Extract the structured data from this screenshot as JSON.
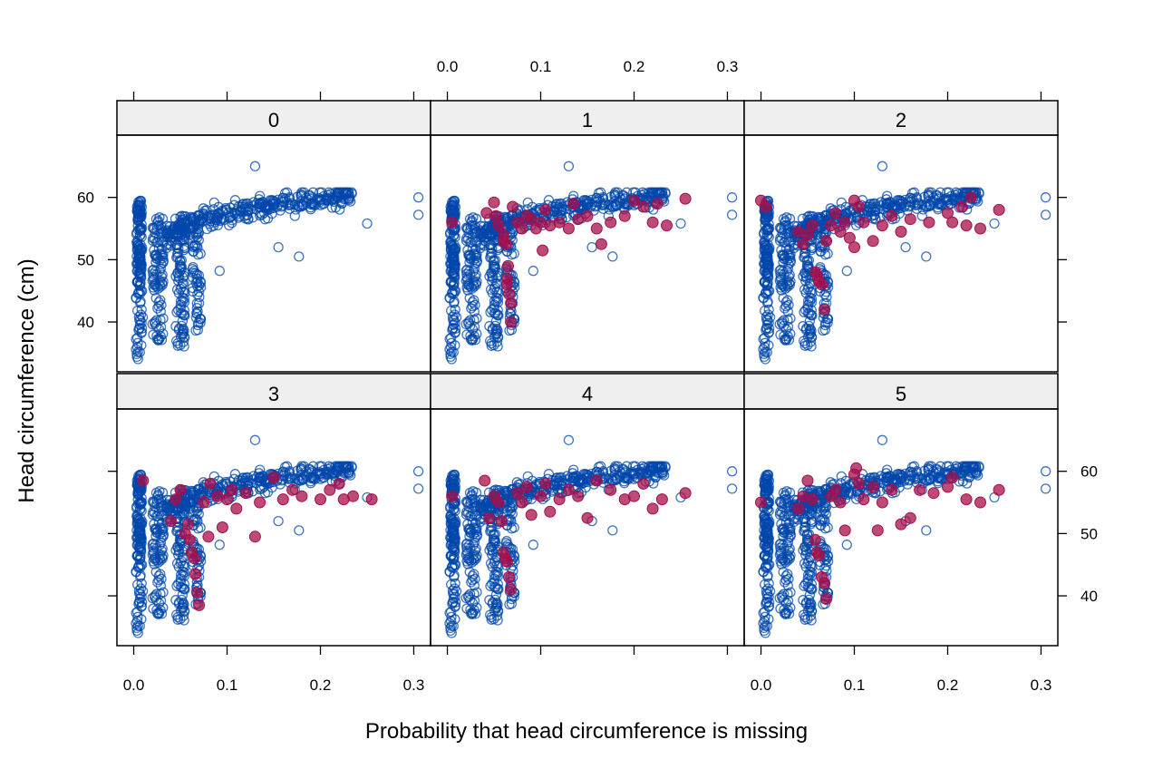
{
  "chart_data": {
    "type": "scatter",
    "layout": "lattice 3 columns x 2 rows",
    "xlabel": "Probability that head circumference is missing",
    "ylabel": "Head circumference (cm)",
    "xlim": [
      -0.018,
      0.318
    ],
    "ylim": [
      32,
      70
    ],
    "x_ticks": [
      "0.0",
      "0.1",
      "0.2",
      "0.3"
    ],
    "y_ticks": [
      "40",
      "50",
      "60"
    ],
    "colors": {
      "observed": "#0047ab",
      "imputed": "#a50f4b",
      "strip": "#efefef"
    },
    "marker_styles": {
      "observed": "open circle",
      "imputed": "filled circle"
    },
    "panels": [
      {
        "label": "0",
        "imputed": []
      },
      {
        "label": "1",
        "imputed": [
          [
            0.005,
            56.0
          ],
          [
            0.042,
            57.5
          ],
          [
            0.05,
            59.2
          ],
          [
            0.052,
            57.0
          ],
          [
            0.055,
            55.5
          ],
          [
            0.06,
            54.0
          ],
          [
            0.06,
            53.0
          ],
          [
            0.063,
            52.5
          ],
          [
            0.065,
            49.0
          ],
          [
            0.064,
            47.0
          ],
          [
            0.064,
            46.0
          ],
          [
            0.066,
            44.5
          ],
          [
            0.068,
            43.0
          ],
          [
            0.068,
            40.0
          ],
          [
            0.07,
            58.5
          ],
          [
            0.075,
            56.0
          ],
          [
            0.08,
            55.0
          ],
          [
            0.085,
            57.0
          ],
          [
            0.09,
            56.5
          ],
          [
            0.095,
            55.0
          ],
          [
            0.1,
            56.0
          ],
          [
            0.102,
            51.5
          ],
          [
            0.105,
            58.0
          ],
          [
            0.11,
            55.5
          ],
          [
            0.12,
            56.0
          ],
          [
            0.13,
            55.0
          ],
          [
            0.135,
            59.0
          ],
          [
            0.14,
            56.5
          ],
          [
            0.15,
            57.0
          ],
          [
            0.16,
            55.0
          ],
          [
            0.165,
            52.5
          ],
          [
            0.175,
            56.0
          ],
          [
            0.19,
            57.0
          ],
          [
            0.2,
            59.5
          ],
          [
            0.21,
            58.5
          ],
          [
            0.22,
            56.0
          ],
          [
            0.225,
            59.0
          ],
          [
            0.235,
            55.5
          ],
          [
            0.255,
            59.8
          ]
        ]
      },
      {
        "label": "2",
        "imputed": [
          [
            0.0,
            59.5
          ],
          [
            0.005,
            58.5
          ],
          [
            0.04,
            54.5
          ],
          [
            0.045,
            52.5
          ],
          [
            0.05,
            54.0
          ],
          [
            0.055,
            55.5
          ],
          [
            0.058,
            48.0
          ],
          [
            0.06,
            47.5
          ],
          [
            0.062,
            46.5
          ],
          [
            0.065,
            46.0
          ],
          [
            0.068,
            42.0
          ],
          [
            0.07,
            53.0
          ],
          [
            0.075,
            55.5
          ],
          [
            0.08,
            57.5
          ],
          [
            0.085,
            54.5
          ],
          [
            0.09,
            56.0
          ],
          [
            0.095,
            53.5
          ],
          [
            0.1,
            52.0
          ],
          [
            0.1,
            59.5
          ],
          [
            0.105,
            58.5
          ],
          [
            0.11,
            56.0
          ],
          [
            0.12,
            53.0
          ],
          [
            0.13,
            55.5
          ],
          [
            0.14,
            57.0
          ],
          [
            0.15,
            54.5
          ],
          [
            0.16,
            56.5
          ],
          [
            0.18,
            56.0
          ],
          [
            0.2,
            57.5
          ],
          [
            0.205,
            56.0
          ],
          [
            0.215,
            58.5
          ],
          [
            0.22,
            55.5
          ],
          [
            0.225,
            60.0
          ],
          [
            0.235,
            55.0
          ],
          [
            0.255,
            58.0
          ]
        ]
      },
      {
        "label": "3",
        "imputed": [
          [
            0.01,
            58.5
          ],
          [
            0.04,
            52.0
          ],
          [
            0.045,
            55.5
          ],
          [
            0.05,
            57.0
          ],
          [
            0.055,
            50.0
          ],
          [
            0.058,
            51.5
          ],
          [
            0.06,
            49.0
          ],
          [
            0.062,
            47.0
          ],
          [
            0.065,
            46.0
          ],
          [
            0.066,
            43.5
          ],
          [
            0.068,
            40.5
          ],
          [
            0.07,
            38.5
          ],
          [
            0.075,
            55.0
          ],
          [
            0.08,
            49.5
          ],
          [
            0.082,
            58.0
          ],
          [
            0.09,
            56.0
          ],
          [
            0.095,
            51.0
          ],
          [
            0.1,
            55.5
          ],
          [
            0.105,
            57.0
          ],
          [
            0.11,
            54.0
          ],
          [
            0.12,
            56.5
          ],
          [
            0.13,
            49.5
          ],
          [
            0.135,
            55.0
          ],
          [
            0.15,
            59.0
          ],
          [
            0.16,
            55.5
          ],
          [
            0.17,
            57.0
          ],
          [
            0.18,
            56.0
          ],
          [
            0.2,
            55.5
          ],
          [
            0.21,
            57.0
          ],
          [
            0.22,
            58.0
          ],
          [
            0.225,
            55.5
          ],
          [
            0.235,
            56.0
          ],
          [
            0.255,
            55.5
          ]
        ]
      },
      {
        "label": "4",
        "imputed": [
          [
            0.005,
            56.0
          ],
          [
            0.04,
            58.5
          ],
          [
            0.045,
            52.5
          ],
          [
            0.05,
            56.0
          ],
          [
            0.055,
            55.0
          ],
          [
            0.058,
            52.0
          ],
          [
            0.06,
            47.0
          ],
          [
            0.062,
            46.0
          ],
          [
            0.064,
            45.5
          ],
          [
            0.066,
            43.0
          ],
          [
            0.068,
            41.0
          ],
          [
            0.075,
            56.5
          ],
          [
            0.08,
            55.0
          ],
          [
            0.085,
            57.5
          ],
          [
            0.09,
            53.0
          ],
          [
            0.1,
            56.0
          ],
          [
            0.105,
            58.0
          ],
          [
            0.11,
            53.5
          ],
          [
            0.12,
            55.5
          ],
          [
            0.13,
            57.0
          ],
          [
            0.14,
            56.0
          ],
          [
            0.15,
            52.5
          ],
          [
            0.16,
            58.5
          ],
          [
            0.175,
            57.0
          ],
          [
            0.19,
            55.5
          ],
          [
            0.2,
            56.0
          ],
          [
            0.21,
            58.0
          ],
          [
            0.22,
            54.0
          ],
          [
            0.23,
            55.5
          ],
          [
            0.255,
            56.5
          ]
        ]
      },
      {
        "label": "5",
        "imputed": [
          [
            0.0,
            55.0
          ],
          [
            0.04,
            54.0
          ],
          [
            0.045,
            56.0
          ],
          [
            0.05,
            58.5
          ],
          [
            0.055,
            55.5
          ],
          [
            0.058,
            49.0
          ],
          [
            0.06,
            47.0
          ],
          [
            0.062,
            46.5
          ],
          [
            0.065,
            43.0
          ],
          [
            0.068,
            42.0
          ],
          [
            0.07,
            39.5
          ],
          [
            0.075,
            56.0
          ],
          [
            0.08,
            57.0
          ],
          [
            0.085,
            55.0
          ],
          [
            0.09,
            50.5
          ],
          [
            0.1,
            59.5
          ],
          [
            0.102,
            60.5
          ],
          [
            0.105,
            58.0
          ],
          [
            0.11,
            55.5
          ],
          [
            0.12,
            57.5
          ],
          [
            0.125,
            50.5
          ],
          [
            0.13,
            55.0
          ],
          [
            0.14,
            57.0
          ],
          [
            0.15,
            51.5
          ],
          [
            0.16,
            52.5
          ],
          [
            0.17,
            57.0
          ],
          [
            0.185,
            56.5
          ],
          [
            0.2,
            57.5
          ],
          [
            0.205,
            59.0
          ],
          [
            0.22,
            55.5
          ],
          [
            0.235,
            55.0
          ],
          [
            0.255,
            57.0
          ]
        ]
      }
    ]
  }
}
